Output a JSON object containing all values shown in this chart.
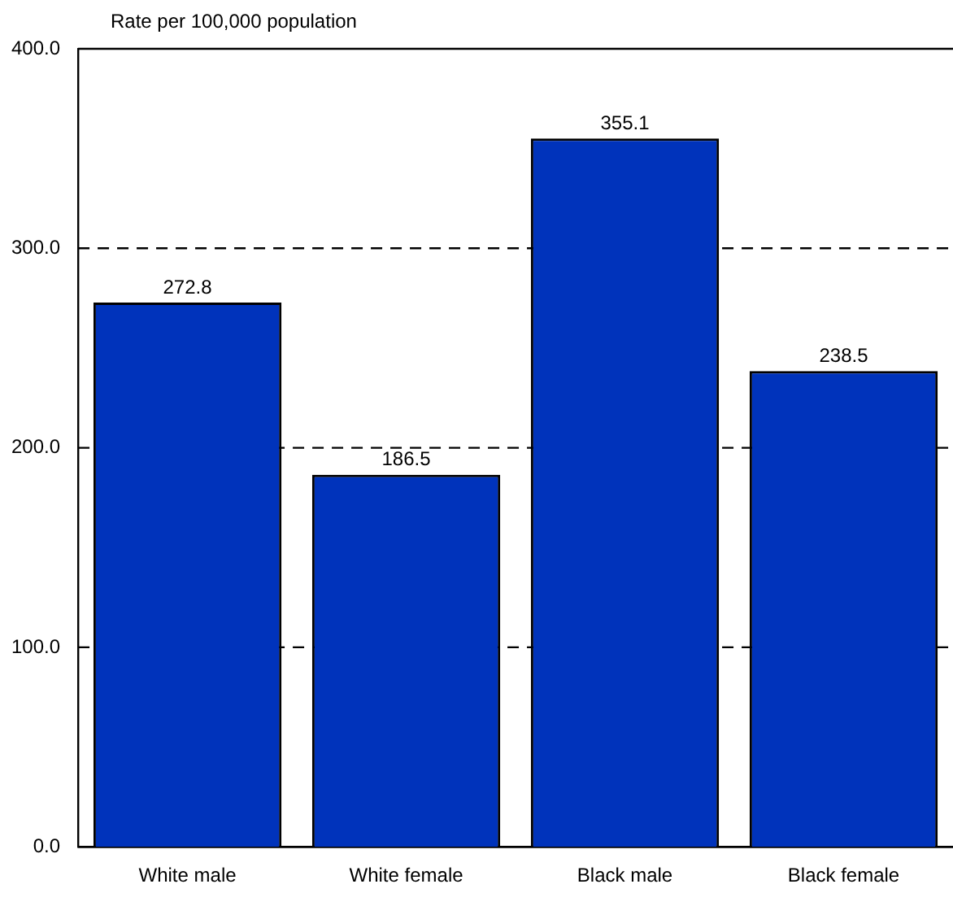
{
  "chart_data": {
    "type": "bar",
    "ylabel": "Rate per 100,000 population",
    "categories": [
      "White male",
      "White female",
      "Black male",
      "Black female"
    ],
    "values": [
      272.8,
      186.5,
      355.1,
      238.5
    ],
    "color": "#0033bb",
    "ylim": [
      0,
      400
    ],
    "yticks": [
      {
        "value": 0,
        "label": "0.0"
      },
      {
        "value": 100,
        "label": "100.0"
      },
      {
        "value": 200,
        "label": "200.0"
      },
      {
        "value": 300,
        "label": "300.0"
      },
      {
        "value": 400,
        "label": "400.0"
      }
    ],
    "grid": "y",
    "data_labels": true,
    "legend": false
  }
}
